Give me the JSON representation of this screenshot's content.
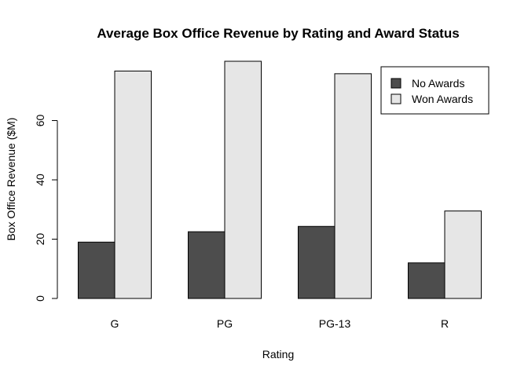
{
  "chart_data": {
    "type": "bar",
    "title": "Average Box Office Revenue by Rating and Award Status",
    "xlabel": "Rating",
    "ylabel": "Box Office Revenue ($M)",
    "categories": [
      "G",
      "PG",
      "PG-13",
      "R"
    ],
    "series": [
      {
        "name": "No Awards",
        "color": "#4d4d4d",
        "values": [
          19.0,
          22.5,
          24.3,
          12.0
        ]
      },
      {
        "name": "Won Awards",
        "color": "#e6e6e6",
        "values": [
          76.7,
          80.0,
          75.8,
          29.5
        ]
      }
    ],
    "ylim": [
      0,
      80
    ],
    "yticks": [
      0,
      20,
      40,
      60
    ],
    "grid": false,
    "legend_position": "top-right"
  }
}
